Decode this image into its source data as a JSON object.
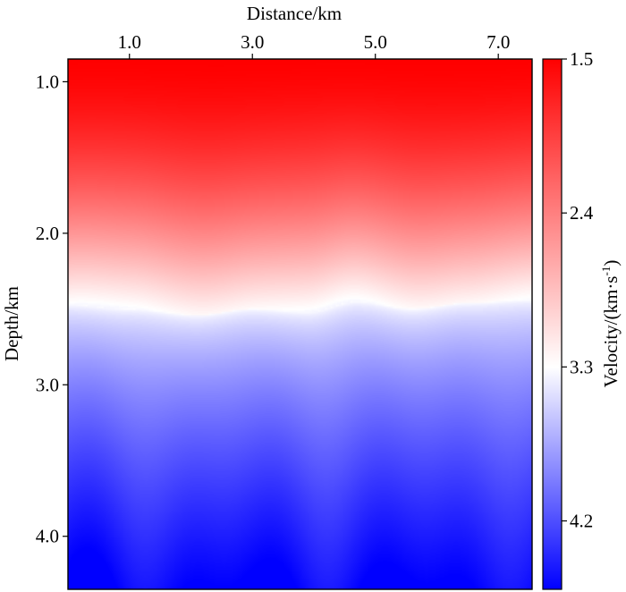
{
  "chart_data": {
    "type": "heatmap",
    "xlabel": "Distance/km",
    "ylabel": "Depth/km",
    "x_ticks": [
      1.0,
      3.0,
      5.0,
      7.0
    ],
    "y_ticks": [
      1.0,
      2.0,
      3.0,
      4.0
    ],
    "x_tick_labels": [
      "1.0",
      "3.0",
      "5.0",
      "7.0"
    ],
    "y_tick_labels": [
      "1.0",
      "2.0",
      "3.0",
      "4.0"
    ],
    "xlim": [
      0.0,
      7.55
    ],
    "ylim": [
      0.85,
      4.35
    ],
    "x_axis_position": "top",
    "grid": false,
    "colorbar": {
      "label": "Velocity/(km·s",
      "label_exponent": "-1",
      "label_close": ")",
      "range": [
        1.5,
        4.6
      ],
      "ticks": [
        1.5,
        2.4,
        3.3,
        4.2
      ],
      "tick_labels": [
        "1.5",
        "2.4",
        "3.3",
        "4.2"
      ],
      "colors": [
        "#ff0000",
        "#ffffff",
        "#0000ff"
      ],
      "position": "right"
    },
    "velocity_model": {
      "surface_velocity": 1.5,
      "interface_depth_km": 2.47,
      "velocity_at_interface": 3.3,
      "bottom_velocity": 4.6,
      "interface_undulation": [
        {
          "x": 0.0,
          "depth": 2.47
        },
        {
          "x": 1.0,
          "depth": 2.5
        },
        {
          "x": 2.1,
          "depth": 2.54
        },
        {
          "x": 3.0,
          "depth": 2.5
        },
        {
          "x": 3.9,
          "depth": 2.52
        },
        {
          "x": 4.7,
          "depth": 2.45
        },
        {
          "x": 5.6,
          "depth": 2.5
        },
        {
          "x": 6.5,
          "depth": 2.46
        },
        {
          "x": 7.55,
          "depth": 2.44
        }
      ]
    }
  }
}
